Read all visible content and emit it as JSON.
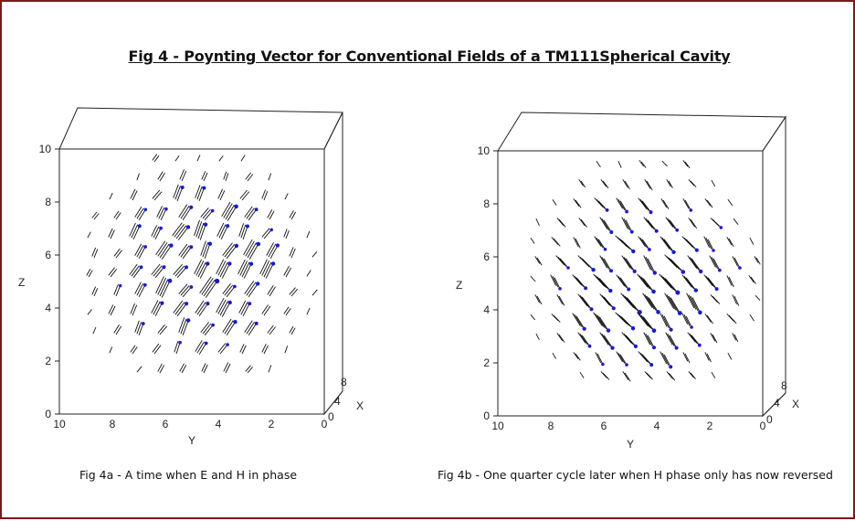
{
  "title": "Fig 4 - Poynting Vector for Conventional Fields of a TM111Spherical Cavity",
  "colors": {
    "frame": "#7a1a1a",
    "arrow": "#111111",
    "arrowhead": "#1a1acc"
  },
  "panels": [
    {
      "caption": "Fig 4a - A time when E and H in phase",
      "z_label": "Z",
      "y_label": "Y",
      "x_label": "X",
      "z_ticks": [
        "0",
        "2",
        "4",
        "6",
        "8",
        "10"
      ],
      "y_ticks": [
        "10",
        "8",
        "6",
        "4",
        "2",
        "0"
      ],
      "x_ticks": [
        "0",
        "4",
        "8"
      ],
      "arrow_direction": "up-right"
    },
    {
      "caption": "Fig 4b - One quarter cycle later when H phase only has now reversed",
      "z_label": "Z",
      "y_label": "Y",
      "x_label": "X",
      "z_ticks": [
        "0",
        "2",
        "4",
        "6",
        "8",
        "10"
      ],
      "y_ticks": [
        "10",
        "8",
        "6",
        "4",
        "2",
        "0"
      ],
      "x_ticks": [
        "0",
        "4",
        "8"
      ],
      "arrow_direction": "down-right"
    }
  ]
}
